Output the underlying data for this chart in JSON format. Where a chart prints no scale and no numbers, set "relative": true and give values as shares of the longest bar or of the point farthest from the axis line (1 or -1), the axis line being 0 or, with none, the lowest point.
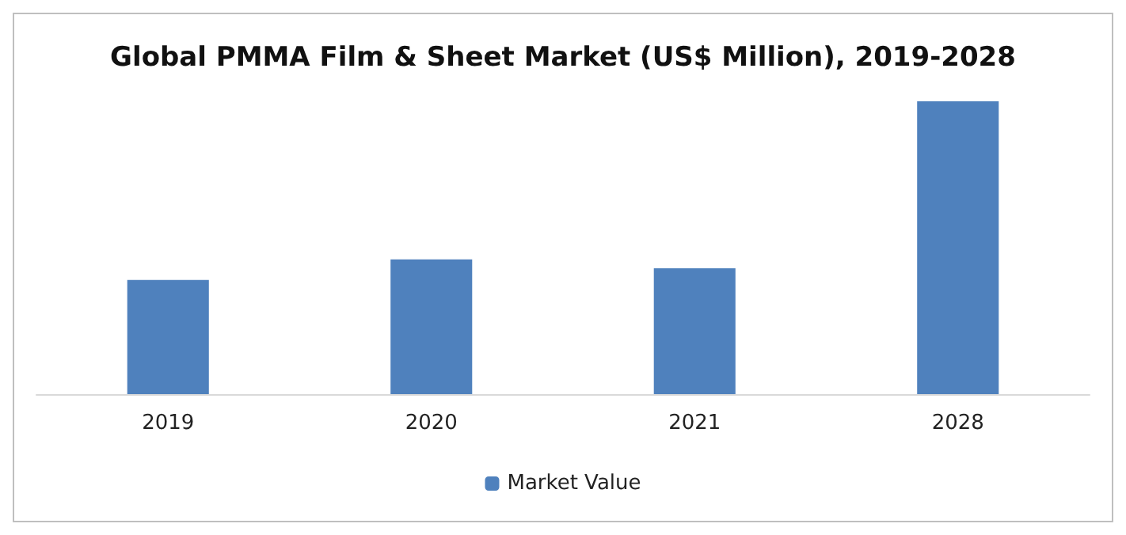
{
  "chart_data": {
    "type": "bar",
    "title": "Global PMMA Film & Sheet Market (US$ Million), 2019-2028",
    "categories": [
      "2019",
      "2020",
      "2021",
      "2028"
    ],
    "relative": true,
    "series": [
      {
        "name": "Market Value",
        "color": "#4f81bd",
        "values": [
          0.39,
          0.46,
          0.43,
          1
        ]
      }
    ],
    "legend": "bottom",
    "grid": false
  }
}
